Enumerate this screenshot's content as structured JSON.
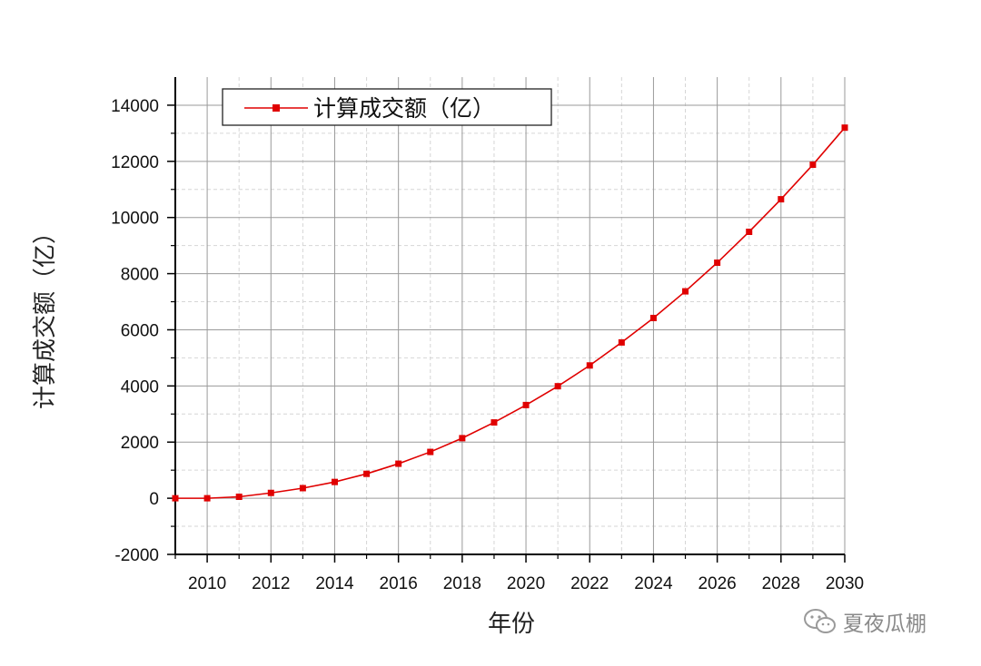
{
  "chart_data": {
    "type": "line",
    "x": [
      2009,
      2010,
      2011,
      2012,
      2013,
      2014,
      2015,
      2016,
      2017,
      2018,
      2019,
      2020,
      2021,
      2022,
      2023,
      2024,
      2025,
      2026,
      2027,
      2028,
      2029,
      2030
    ],
    "series": [
      {
        "name": "计算成交额（亿）",
        "color": "#e00000",
        "marker": "square",
        "values": [
          0,
          0,
          52,
          190,
          360,
          580,
          870,
          1230,
          1650,
          2140,
          2700,
          3320,
          3990,
          4730,
          5550,
          6420,
          7370,
          8390,
          9490,
          10650,
          11880,
          13200
        ]
      }
    ],
    "xlabel": "年份",
    "ylabel": "计算成交额（亿）",
    "xlim": [
      2009,
      2030
    ],
    "ylim": [
      -2000,
      15000
    ],
    "x_ticks": [
      2010,
      2012,
      2014,
      2016,
      2018,
      2020,
      2022,
      2024,
      2026,
      2028,
      2030
    ],
    "x_tick_labels": [
      "2010",
      "2012",
      "2014",
      "2016",
      "2018",
      "2020",
      "2022",
      "2024",
      "2026",
      "2028",
      "2030"
    ],
    "y_ticks": [
      -2000,
      0,
      2000,
      4000,
      6000,
      8000,
      10000,
      12000,
      14000
    ],
    "y_tick_labels": [
      "-2000",
      "0",
      "2000",
      "4000",
      "6000",
      "8000",
      "10000",
      "12000",
      "14000"
    ],
    "grid": true,
    "legend_position": "top-left"
  },
  "watermark": {
    "text": "夏夜瓜棚",
    "icon": "wechat-icon"
  }
}
